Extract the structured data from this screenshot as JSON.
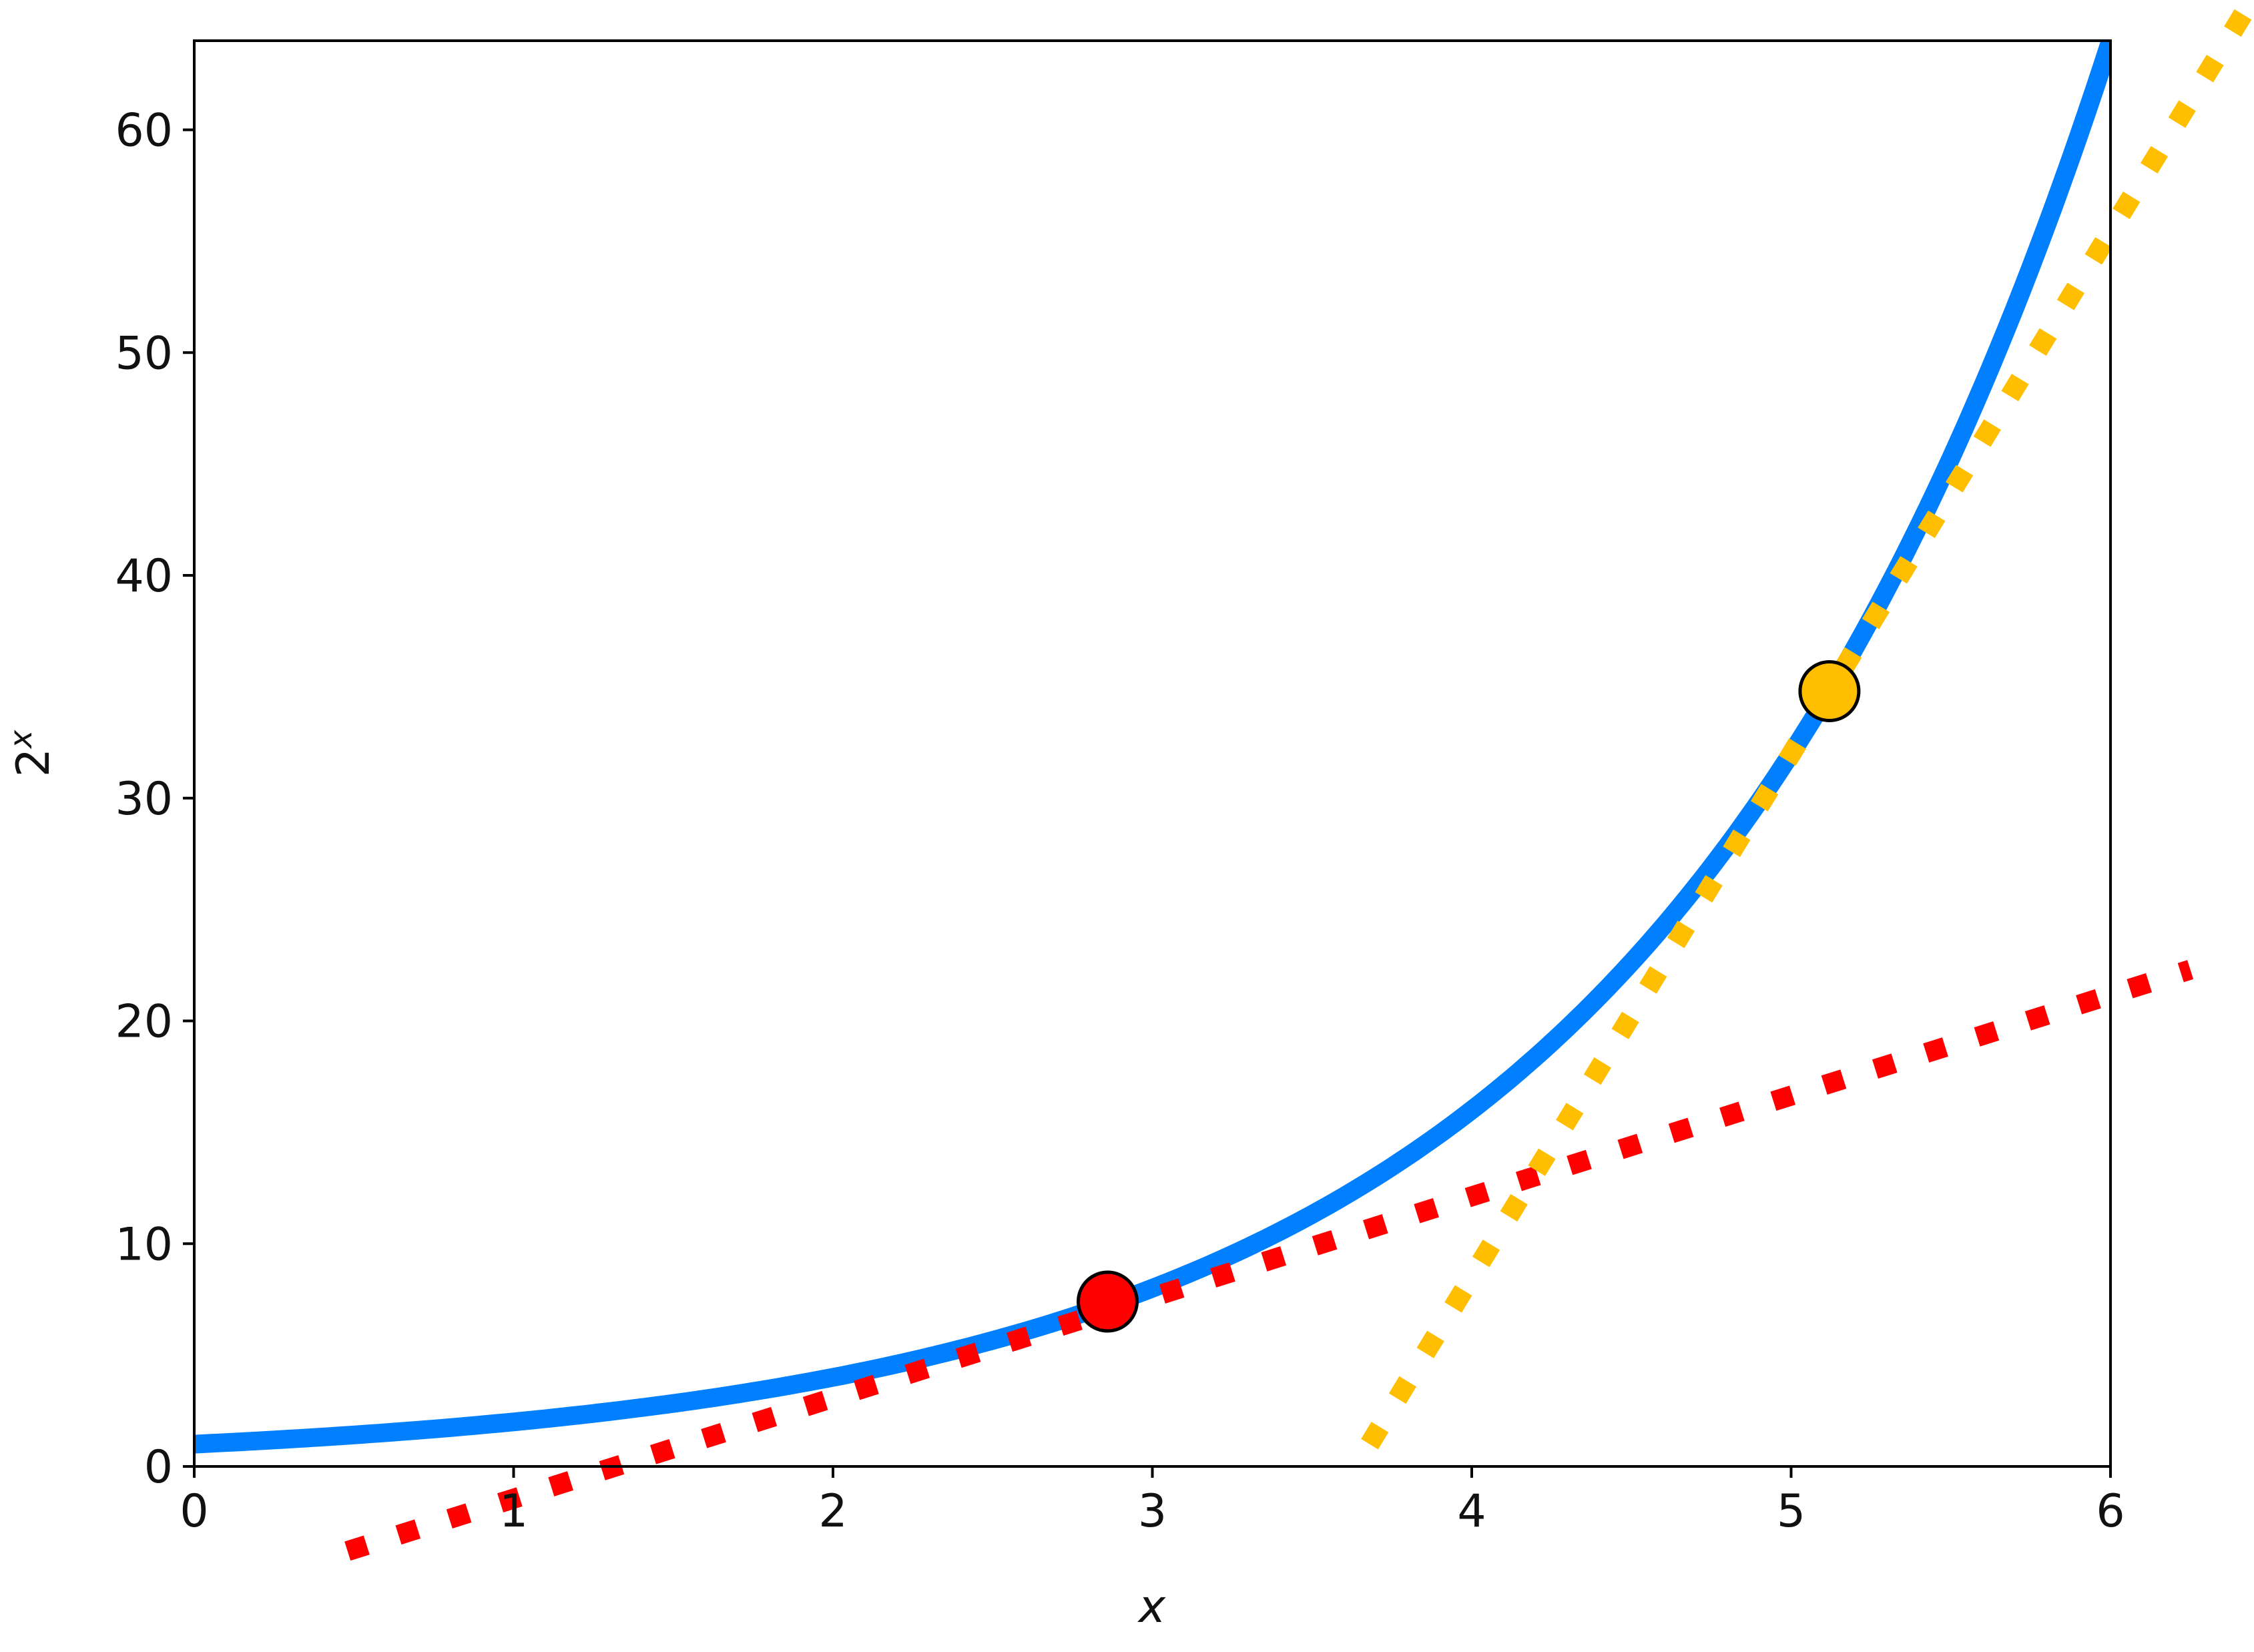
{
  "chart_data": {
    "type": "line",
    "title": "",
    "xlabel": "x",
    "ylabel_base": "2",
    "ylabel_exp": "x",
    "xlim": [
      0,
      6
    ],
    "ylim": [
      0,
      64
    ],
    "xticks": [
      0,
      1,
      2,
      3,
      4,
      5,
      6
    ],
    "xtick_labels": [
      "0",
      "1",
      "2",
      "3",
      "4",
      "5",
      "6"
    ],
    "yticks": [
      0,
      10,
      20,
      30,
      40,
      50,
      60
    ],
    "ytick_labels": [
      "0",
      "10",
      "20",
      "30",
      "40",
      "50",
      "60"
    ],
    "grid": false,
    "legend": "none",
    "series": [
      {
        "kind": "curve",
        "function": "2^x",
        "color": "#0080ff",
        "x": [
          0,
          0.5,
          1,
          1.5,
          2,
          2.5,
          3,
          3.5,
          4,
          4.5,
          5,
          5.5,
          6
        ],
        "y": [
          1,
          1.41,
          2,
          2.83,
          4,
          5.66,
          8,
          11.31,
          16,
          22.63,
          32,
          45.25,
          64
        ]
      },
      {
        "kind": "tangent",
        "style": "dotted",
        "color": "#ff0000",
        "x": [
          0.48,
          6.25
        ],
        "y": [
          -3.8,
          22.3
        ]
      },
      {
        "kind": "tangent",
        "style": "dotted",
        "color": "#ffbf00",
        "x": [
          3.68,
          6.45
        ],
        "y": [
          1.0,
          66.0
        ]
      }
    ],
    "points": [
      {
        "x": 2.86,
        "y": 7.4,
        "color": "#ff0000"
      },
      {
        "x": 5.12,
        "y": 34.8,
        "color": "#ffbf00"
      }
    ]
  }
}
